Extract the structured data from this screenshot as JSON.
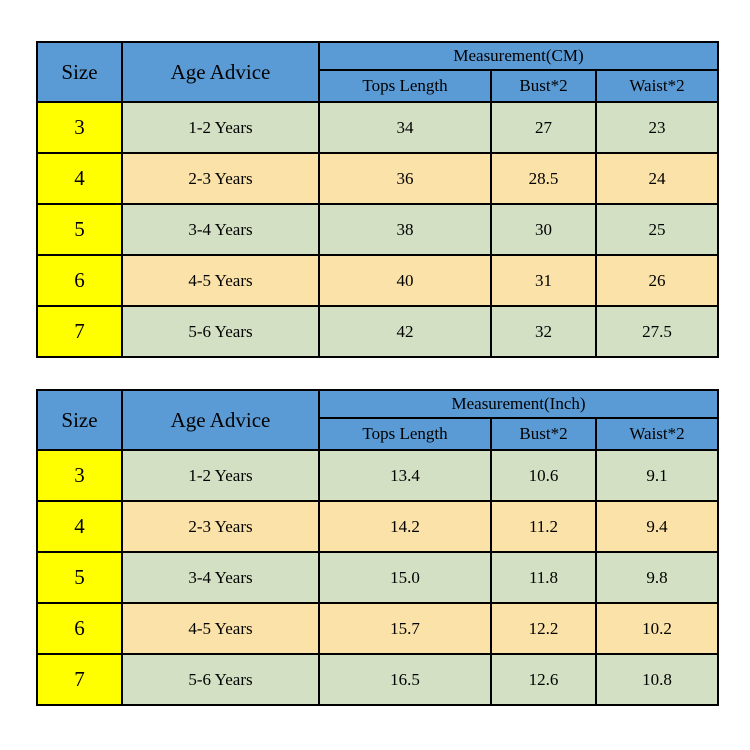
{
  "colors": {
    "header_blue": "#5b9bd5",
    "size_yellow": "#ffff00",
    "row_green": "#d3e0c3",
    "row_tan": "#fae2a8",
    "border": "#000000",
    "page_background": "#ffffff"
  },
  "tables": [
    {
      "unit": "CM",
      "headers": {
        "size": "Size",
        "age": "Age Advice",
        "measurement": "Measurement(CM)",
        "tops": "Tops Length",
        "bust": "Bust*2",
        "waist": "Waist*2"
      },
      "rows": [
        {
          "size": "3",
          "age": "1-2 Years",
          "tops": "34",
          "bust": "27",
          "waist": "23"
        },
        {
          "size": "4",
          "age": "2-3 Years",
          "tops": "36",
          "bust": "28.5",
          "waist": "24"
        },
        {
          "size": "5",
          "age": "3-4 Years",
          "tops": "38",
          "bust": "30",
          "waist": "25"
        },
        {
          "size": "6",
          "age": "4-5 Years",
          "tops": "40",
          "bust": "31",
          "waist": "26"
        },
        {
          "size": "7",
          "age": "5-6 Years",
          "tops": "42",
          "bust": "32",
          "waist": "27.5"
        }
      ]
    },
    {
      "unit": "Inch",
      "headers": {
        "size": "Size",
        "age": "Age Advice",
        "measurement": "Measurement(Inch)",
        "tops": "Tops Length",
        "bust": "Bust*2",
        "waist": "Waist*2"
      },
      "rows": [
        {
          "size": "3",
          "age": "1-2 Years",
          "tops": "13.4",
          "bust": "10.6",
          "waist": "9.1"
        },
        {
          "size": "4",
          "age": "2-3 Years",
          "tops": "14.2",
          "bust": "11.2",
          "waist": "9.4"
        },
        {
          "size": "5",
          "age": "3-4 Years",
          "tops": "15.0",
          "bust": "11.8",
          "waist": "9.8"
        },
        {
          "size": "6",
          "age": "4-5 Years",
          "tops": "15.7",
          "bust": "12.2",
          "waist": "10.2"
        },
        {
          "size": "7",
          "age": "5-6 Years",
          "tops": "16.5",
          "bust": "12.6",
          "waist": "10.8"
        }
      ]
    }
  ]
}
